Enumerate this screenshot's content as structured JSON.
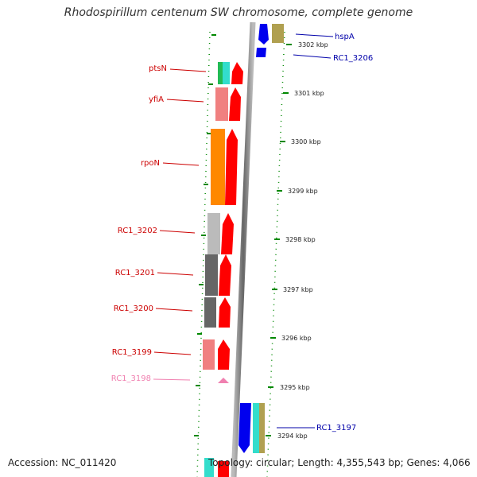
{
  "title": "Rhodospirillum centenum SW chromosome, complete genome",
  "footer": {
    "accession": "Accession: NC_011420",
    "summary": "Topology: circular; Length: 4,355,543 bp; Genes: 4,066"
  },
  "scale_labels": [
    "3302 kbp",
    "3301 kbp",
    "3300 kbp",
    "3299 kbp",
    "3298 kbp",
    "3297 kbp",
    "3296 kbp",
    "3295 kbp",
    "3294 kbp"
  ],
  "genes_left": [
    {
      "name": "ptsN",
      "color": "#cc0000"
    },
    {
      "name": "yfiA",
      "color": "#cc0000"
    },
    {
      "name": "rpoN",
      "color": "#cc0000"
    },
    {
      "name": "RC1_3202",
      "color": "#cc0000"
    },
    {
      "name": "RC1_3201",
      "color": "#cc0000"
    },
    {
      "name": "RC1_3200",
      "color": "#cc0000"
    },
    {
      "name": "RC1_3199",
      "color": "#cc0000"
    },
    {
      "name": "RC1_3198",
      "color": "#f080b0"
    }
  ],
  "genes_right": [
    {
      "name": "hspA",
      "color": "#0000aa"
    },
    {
      "name": "RC1_3206",
      "color": "#0000aa"
    },
    {
      "name": "RC1_3197",
      "color": "#0000aa"
    }
  ],
  "colors": {
    "forward_strand": "#ff0000",
    "reverse_strand": "#0000ff",
    "tick": "#008800",
    "backbone": "#888888"
  }
}
